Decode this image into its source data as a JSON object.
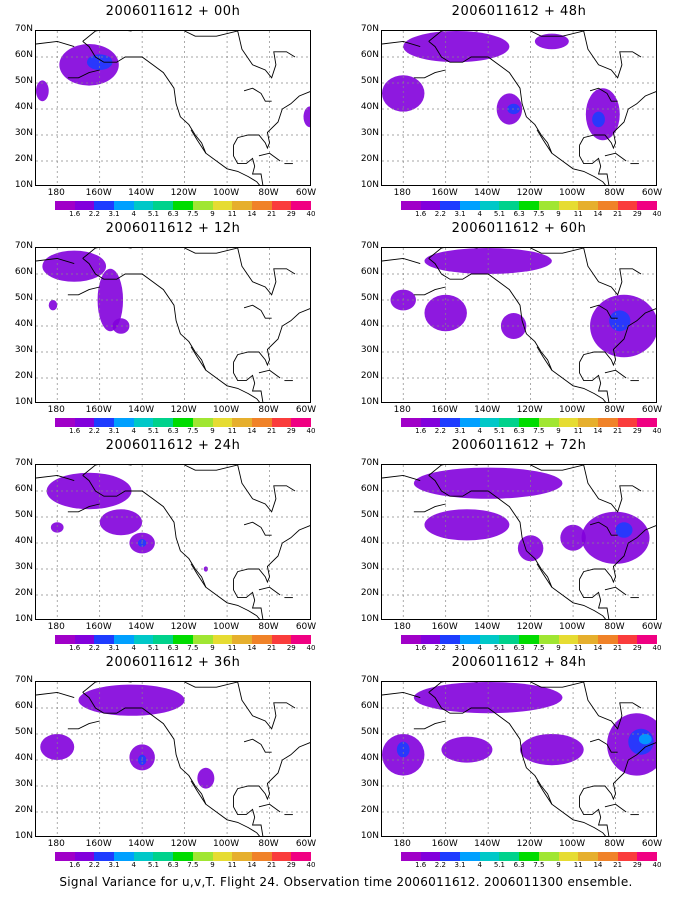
{
  "panels": [
    {
      "title": "2006011612 + 00h",
      "blobs": [
        {
          "lon": -165,
          "lat": 57,
          "rx": 14,
          "ry": 8,
          "c": 2
        },
        {
          "lon": -160,
          "lat": 58,
          "rx": 6,
          "ry": 3,
          "c": 3
        },
        {
          "lon": -187,
          "lat": 47,
          "rx": 3,
          "ry": 4,
          "c": 2
        },
        {
          "lon": -61,
          "lat": 37,
          "rx": 3,
          "ry": 4,
          "c": 2
        }
      ]
    },
    {
      "title": "2006011612 + 48h",
      "blobs": [
        {
          "lon": -155,
          "lat": 64,
          "rx": 25,
          "ry": 6,
          "c": 2
        },
        {
          "lon": -180,
          "lat": 46,
          "rx": 10,
          "ry": 7,
          "c": 2
        },
        {
          "lon": -130,
          "lat": 40,
          "rx": 6,
          "ry": 6,
          "c": 2
        },
        {
          "lon": -128,
          "lat": 40,
          "rx": 3,
          "ry": 2,
          "c": 3
        },
        {
          "lon": -86,
          "lat": 38,
          "rx": 8,
          "ry": 10,
          "c": 2
        },
        {
          "lon": -88,
          "lat": 36,
          "rx": 3,
          "ry": 3,
          "c": 3
        },
        {
          "lon": -110,
          "lat": 66,
          "rx": 8,
          "ry": 3,
          "c": 2
        }
      ]
    },
    {
      "title": "2006011612 + 12h",
      "blobs": [
        {
          "lon": -172,
          "lat": 63,
          "rx": 15,
          "ry": 6,
          "c": 2
        },
        {
          "lon": -155,
          "lat": 50,
          "rx": 6,
          "ry": 12,
          "c": 2
        },
        {
          "lon": -182,
          "lat": 48,
          "rx": 2,
          "ry": 2,
          "c": 2
        },
        {
          "lon": -150,
          "lat": 40,
          "rx": 4,
          "ry": 3,
          "c": 2
        }
      ]
    },
    {
      "title": "2006011612 + 60h",
      "blobs": [
        {
          "lon": -140,
          "lat": 65,
          "rx": 30,
          "ry": 5,
          "c": 2
        },
        {
          "lon": -160,
          "lat": 45,
          "rx": 10,
          "ry": 7,
          "c": 2
        },
        {
          "lon": -180,
          "lat": 50,
          "rx": 6,
          "ry": 4,
          "c": 2
        },
        {
          "lon": -128,
          "lat": 40,
          "rx": 6,
          "ry": 5,
          "c": 2
        },
        {
          "lon": -76,
          "lat": 40,
          "rx": 16,
          "ry": 12,
          "c": 2
        },
        {
          "lon": -78,
          "lat": 42,
          "rx": 5,
          "ry": 4,
          "c": 3
        }
      ]
    },
    {
      "title": "2006011612 + 24h",
      "blobs": [
        {
          "lon": -165,
          "lat": 60,
          "rx": 20,
          "ry": 7,
          "c": 2
        },
        {
          "lon": -150,
          "lat": 48,
          "rx": 10,
          "ry": 5,
          "c": 2
        },
        {
          "lon": -140,
          "lat": 40,
          "rx": 6,
          "ry": 4,
          "c": 2
        },
        {
          "lon": -140,
          "lat": 40,
          "rx": 2,
          "ry": 1.5,
          "c": 3
        },
        {
          "lon": -180,
          "lat": 46,
          "rx": 3,
          "ry": 2,
          "c": 2
        },
        {
          "lon": -110,
          "lat": 30,
          "rx": 1,
          "ry": 1,
          "c": 2
        }
      ]
    },
    {
      "title": "2006011612 + 72h",
      "blobs": [
        {
          "lon": -140,
          "lat": 63,
          "rx": 35,
          "ry": 6,
          "c": 2
        },
        {
          "lon": -150,
          "lat": 47,
          "rx": 20,
          "ry": 6,
          "c": 2
        },
        {
          "lon": -120,
          "lat": 38,
          "rx": 6,
          "ry": 5,
          "c": 2
        },
        {
          "lon": -80,
          "lat": 42,
          "rx": 16,
          "ry": 10,
          "c": 2
        },
        {
          "lon": -76,
          "lat": 45,
          "rx": 4,
          "ry": 3,
          "c": 3
        },
        {
          "lon": -100,
          "lat": 42,
          "rx": 6,
          "ry": 5,
          "c": 2
        }
      ]
    },
    {
      "title": "2006011612 + 36h",
      "blobs": [
        {
          "lon": -145,
          "lat": 63,
          "rx": 25,
          "ry": 6,
          "c": 2
        },
        {
          "lon": -180,
          "lat": 45,
          "rx": 8,
          "ry": 5,
          "c": 2
        },
        {
          "lon": -140,
          "lat": 41,
          "rx": 6,
          "ry": 5,
          "c": 2
        },
        {
          "lon": -140,
          "lat": 40,
          "rx": 2,
          "ry": 2,
          "c": 3
        },
        {
          "lon": -110,
          "lat": 33,
          "rx": 4,
          "ry": 4,
          "c": 2
        }
      ]
    },
    {
      "title": "2006011612 + 84h",
      "blobs": [
        {
          "lon": -140,
          "lat": 64,
          "rx": 35,
          "ry": 6,
          "c": 2
        },
        {
          "lon": -180,
          "lat": 42,
          "rx": 10,
          "ry": 8,
          "c": 2
        },
        {
          "lon": -180,
          "lat": 44,
          "rx": 3,
          "ry": 3,
          "c": 3
        },
        {
          "lon": -150,
          "lat": 44,
          "rx": 12,
          "ry": 5,
          "c": 2
        },
        {
          "lon": -110,
          "lat": 44,
          "rx": 15,
          "ry": 6,
          "c": 2
        },
        {
          "lon": -70,
          "lat": 46,
          "rx": 14,
          "ry": 12,
          "c": 2
        },
        {
          "lon": -68,
          "lat": 47,
          "rx": 6,
          "ry": 5,
          "c": 3
        },
        {
          "lon": -66,
          "lat": 48,
          "rx": 3,
          "ry": 2,
          "c": 4
        }
      ]
    }
  ],
  "axes": {
    "lat_labels": [
      "70N",
      "60N",
      "50N",
      "40N",
      "30N",
      "20N",
      "10N"
    ],
    "lon_labels": [
      "180",
      "160W",
      "140W",
      "120W",
      "100W",
      "80W",
      "60W"
    ]
  },
  "colorbar": {
    "labels": [
      "1.6",
      "2.2",
      "3.1",
      "4",
      "5.1",
      "6.3",
      "7.5",
      "9",
      "11",
      "14",
      "21",
      "29",
      "40"
    ],
    "colors": [
      "#a000c8",
      "#8200dc",
      "#1e3cff",
      "#00a0ff",
      "#00c8c8",
      "#00d28c",
      "#00dc00",
      "#a0e632",
      "#e6dc32",
      "#e6af2d",
      "#f08228",
      "#fa3c3c",
      "#f00082"
    ]
  },
  "footer": "Signal Variance for u,v,T. Flight 24. Observation time 2006011612. 2006011300 ensemble."
}
